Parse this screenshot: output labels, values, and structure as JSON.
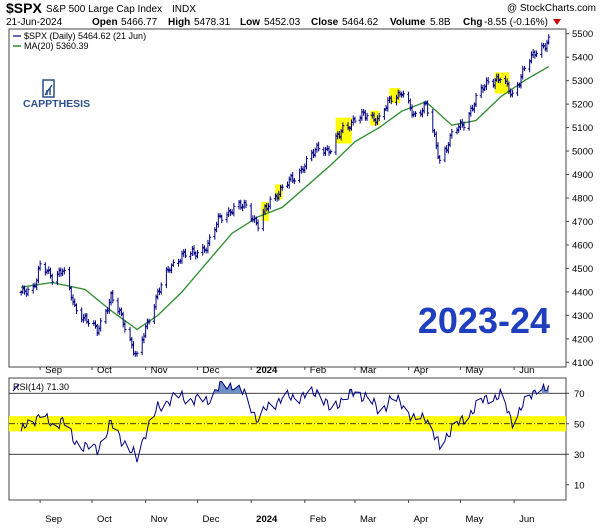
{
  "header": {
    "symbol": "$SPX",
    "name": "S&P 500 Large Cap Index",
    "exchange": "INDX",
    "watermark": "@ StockCharts.com",
    "date": "21-Jun-2024",
    "open_label": "Open",
    "open": "5466.77",
    "high_label": "High",
    "high": "5478.31",
    "low_label": "Low",
    "low": "5452.03",
    "close_label": "Close",
    "close": "5464.62",
    "volume_label": "Volume",
    "volume": "5.8B",
    "chg_label": "Chg",
    "chg": "-8.55 (-0.16%)"
  },
  "legend": {
    "price": "$SPX (Daily) 5464.62 (21 Jun)",
    "ma": "MA(20) 5360.39",
    "rsi": "RSI(14) 71.30"
  },
  "logo": {
    "text": "CAPPTHESIS"
  },
  "big_label": "2023-24",
  "colors": {
    "price": "#000080",
    "ma": "#2e8b2e",
    "rsi": "#000080",
    "rsi_fill": "#6e8fc4",
    "highlight": "#ffff00",
    "big_label": "#1f3fbf",
    "logo": "#2d4f8c",
    "chg": "#cc0000"
  },
  "chart_data": [
    {
      "type": "line",
      "title": "",
      "series": [
        {
          "name": "$SPX (Daily) 5464.62 (21 Jun)",
          "x": [
            "2023-08-21",
            "2023-08-28",
            "2023-09-01",
            "2023-09-08",
            "2023-09-14",
            "2023-09-21",
            "2023-09-27",
            "2023-10-04",
            "2023-10-12",
            "2023-10-18",
            "2023-10-27",
            "2023-11-01",
            "2023-11-08",
            "2023-11-15",
            "2023-11-22",
            "2023-11-29",
            "2023-12-07",
            "2023-12-14",
            "2023-12-21",
            "2023-12-29",
            "2024-01-05",
            "2024-01-12",
            "2024-01-19",
            "2024-01-26",
            "2024-02-02",
            "2024-02-09",
            "2024-02-16",
            "2024-02-23",
            "2024-03-01",
            "2024-03-08",
            "2024-03-15",
            "2024-03-22",
            "2024-03-28",
            "2024-04-04",
            "2024-04-11",
            "2024-04-19",
            "2024-04-26",
            "2024-05-03",
            "2024-05-10",
            "2024-05-17",
            "2024-05-24",
            "2024-05-31",
            "2024-06-07",
            "2024-06-14",
            "2024-06-21"
          ],
          "y": [
            4390,
            4420,
            4510,
            4460,
            4500,
            4330,
            4290,
            4230,
            4380,
            4290,
            4120,
            4240,
            4400,
            4500,
            4560,
            4560,
            4600,
            4720,
            4750,
            4770,
            4680,
            4790,
            4840,
            4890,
            4950,
            5020,
            5000,
            5100,
            5130,
            5160,
            5130,
            5230,
            5250,
            5150,
            5200,
            4960,
            5070,
            5120,
            5220,
            5300,
            5310,
            5240,
            5350,
            5430,
            5465
          ]
        },
        {
          "name": "MA(20) 5360.39",
          "x": [
            "2023-08-21",
            "2023-09-08",
            "2023-09-27",
            "2023-10-12",
            "2023-10-27",
            "2023-11-08",
            "2023-11-22",
            "2023-12-07",
            "2023-12-21",
            "2024-01-05",
            "2024-01-19",
            "2024-02-02",
            "2024-02-16",
            "2024-03-01",
            "2024-03-15",
            "2024-03-28",
            "2024-04-11",
            "2024-04-26",
            "2024-05-10",
            "2024-05-24",
            "2024-06-07",
            "2024-06-21"
          ],
          "y": [
            4420,
            4440,
            4410,
            4320,
            4240,
            4300,
            4400,
            4530,
            4650,
            4720,
            4760,
            4850,
            4940,
            5040,
            5100,
            5170,
            5210,
            5110,
            5130,
            5230,
            5300,
            5360
          ]
        }
      ],
      "ylim": [
        4080,
        5520
      ],
      "yticks": [
        4100,
        4200,
        4300,
        4400,
        4500,
        4600,
        4700,
        4800,
        4900,
        5000,
        5100,
        5200,
        5300,
        5400,
        5500
      ],
      "xticks": [
        "Sep",
        "Oct",
        "Nov",
        "Dec",
        "2024",
        "Feb",
        "Mar",
        "Apr",
        "May",
        "Jun"
      ],
      "highlights_x": [
        [
          "2024-01-08",
          "2024-01-10"
        ],
        [
          "2024-01-16",
          "2024-01-18"
        ],
        [
          "2024-02-20",
          "2024-02-27"
        ],
        [
          "2024-03-11",
          "2024-03-14"
        ],
        [
          "2024-03-22",
          "2024-03-26"
        ],
        [
          "2024-05-22",
          "2024-05-28"
        ]
      ],
      "grid": false,
      "legend_position": "top-left"
    },
    {
      "type": "line",
      "title": "",
      "series": [
        {
          "name": "RSI(14) 71.30",
          "x": [
            "2023-08-21",
            "2023-08-28",
            "2023-09-01",
            "2023-09-08",
            "2023-09-14",
            "2023-09-21",
            "2023-09-27",
            "2023-10-04",
            "2023-10-12",
            "2023-10-18",
            "2023-10-27",
            "2023-11-01",
            "2023-11-08",
            "2023-11-15",
            "2023-11-22",
            "2023-11-29",
            "2023-12-07",
            "2023-12-14",
            "2023-12-21",
            "2023-12-29",
            "2024-01-05",
            "2024-01-12",
            "2024-01-19",
            "2024-01-26",
            "2024-02-02",
            "2024-02-09",
            "2024-02-16",
            "2024-02-23",
            "2024-03-01",
            "2024-03-08",
            "2024-03-15",
            "2024-03-22",
            "2024-03-28",
            "2024-04-04",
            "2024-04-11",
            "2024-04-19",
            "2024-04-26",
            "2024-05-03",
            "2024-05-10",
            "2024-05-17",
            "2024-05-24",
            "2024-05-31",
            "2024-06-07",
            "2024-06-14",
            "2024-06-21"
          ],
          "y": [
            45,
            52,
            57,
            48,
            53,
            38,
            35,
            33,
            50,
            40,
            27,
            45,
            60,
            66,
            68,
            65,
            66,
            74,
            76,
            68,
            52,
            63,
            66,
            68,
            68,
            72,
            58,
            67,
            70,
            68,
            58,
            66,
            64,
            52,
            55,
            34,
            48,
            52,
            62,
            67,
            68,
            52,
            63,
            74,
            71
          ]
        }
      ],
      "ylim": [
        0,
        80
      ],
      "yticks": [
        10,
        30,
        50,
        70
      ],
      "reference_lines": [
        30,
        50,
        70
      ],
      "highlight_band": [
        45,
        55
      ],
      "xticks": [
        "Sep",
        "Oct",
        "Nov",
        "Dec",
        "2024",
        "Feb",
        "Mar",
        "Apr",
        "May",
        "Jun"
      ],
      "grid": false,
      "legend_position": "top-left"
    }
  ]
}
